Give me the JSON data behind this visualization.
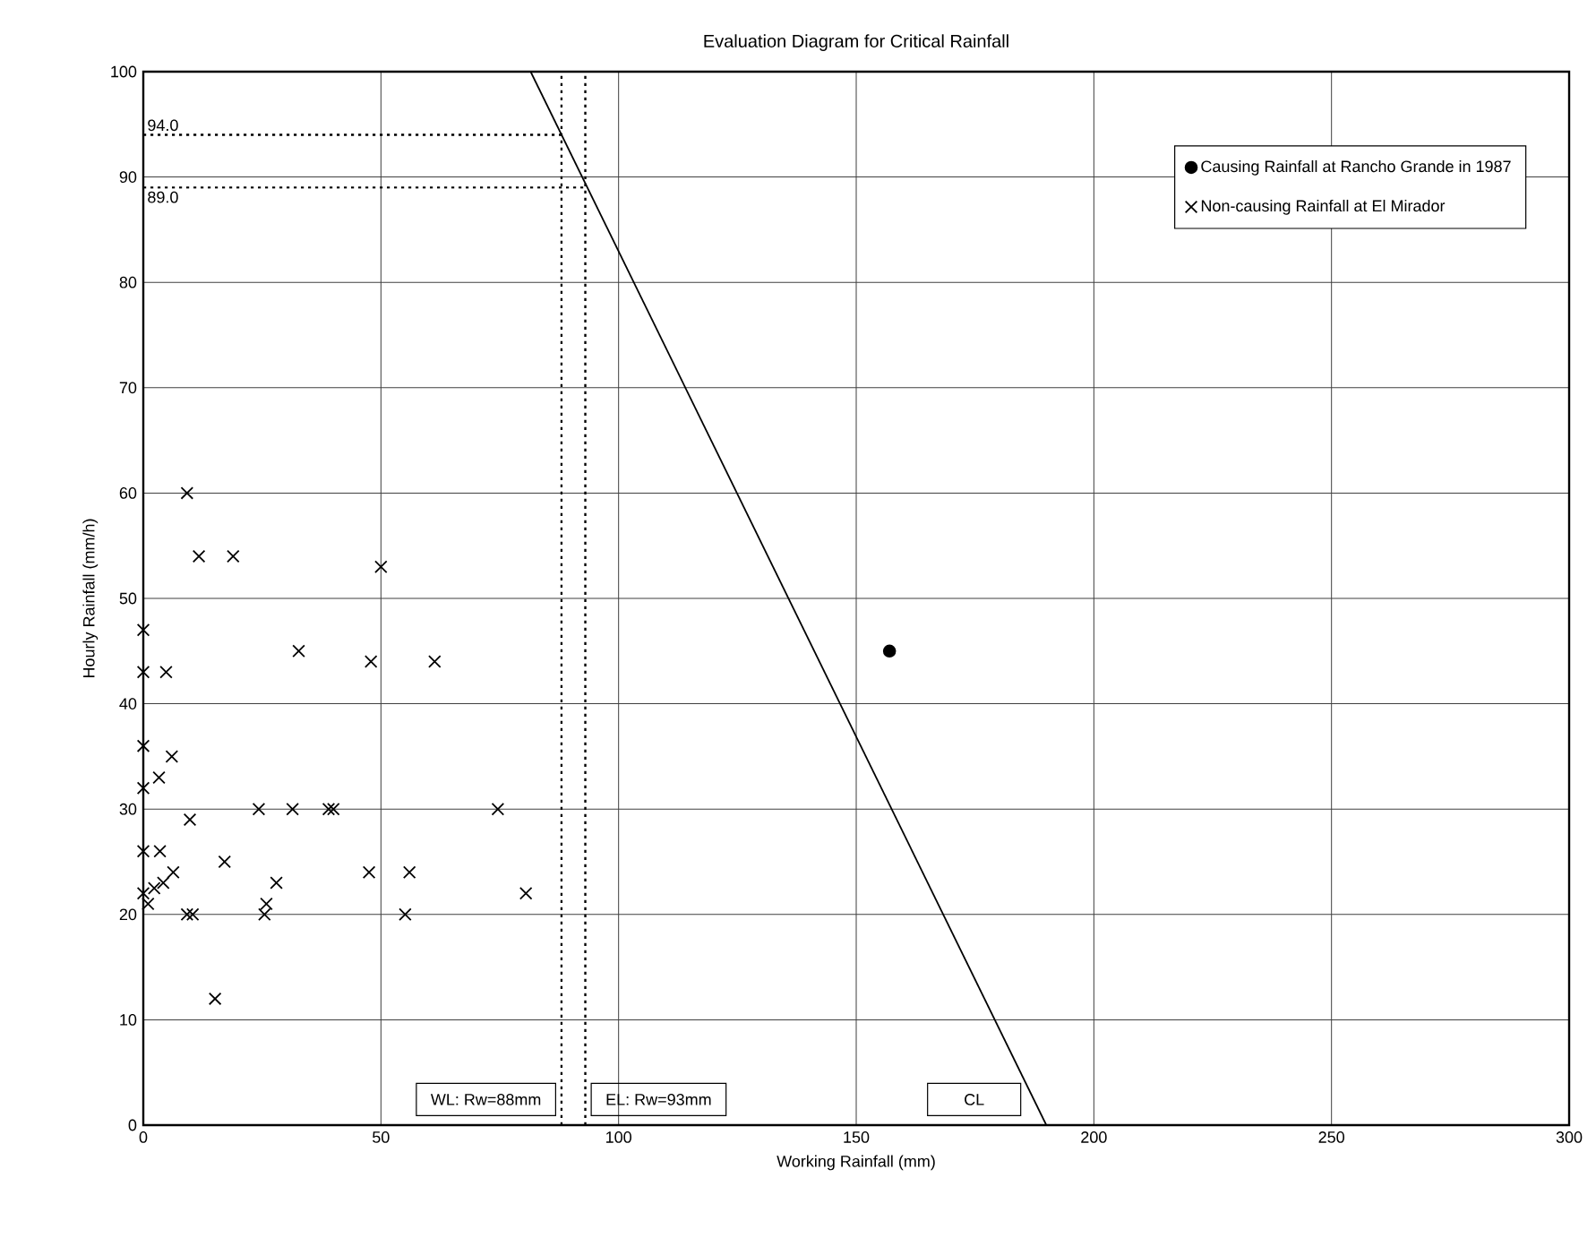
{
  "chart_data": {
    "type": "scatter",
    "title": "Evaluation Diagram for Critical Rainfall",
    "xlabel": "Working Rainfall (mm)",
    "ylabel": "Hourly Rainfall (mm/h)",
    "xlim": [
      0,
      300
    ],
    "ylim": [
      0,
      100
    ],
    "xticks": [
      0,
      50,
      100,
      150,
      200,
      250,
      300
    ],
    "yticks": [
      0,
      10,
      20,
      30,
      40,
      50,
      60,
      70,
      80,
      90,
      100
    ],
    "grid": true,
    "legend": "top right",
    "series": [
      {
        "name": "Causing Rainfall at Rancho Grande in 1987",
        "color": "#000000",
        "marker": "circle",
        "x": [
          157
        ],
        "values": [
          45
        ]
      },
      {
        "name": "Non-causing Rainfall at El Mirador",
        "color": "#000000",
        "marker": "cross",
        "x": [
          9.2,
          11.7,
          18.9,
          50,
          0,
          32.7,
          0,
          4.8,
          47.9,
          61.3,
          0,
          6,
          3.3,
          0,
          9.8,
          24.3,
          31.4,
          39,
          40,
          74.6,
          0,
          3.5,
          6.3,
          17.1,
          28,
          47.5,
          56,
          80.5,
          4.2,
          0,
          2.3,
          1,
          9.2,
          10.4,
          25.5,
          25.9,
          55.1,
          15.1
        ],
        "values": [
          60,
          54,
          54,
          53,
          47,
          45,
          43,
          43,
          44,
          44,
          36,
          35,
          33,
          32,
          29,
          30,
          30,
          30,
          30,
          30,
          26,
          26,
          24,
          25,
          23,
          24,
          24,
          22,
          23,
          22,
          22.5,
          21,
          20,
          20,
          20,
          21,
          20,
          12
        ]
      },
      {
        "name": "CL",
        "type": "line",
        "color": "#000000",
        "marker": "none",
        "x": [
          81.5,
          190
        ],
        "values": [
          100,
          0
        ]
      }
    ],
    "ref_lines": [
      {
        "axis": "x",
        "value": 88,
        "label": "WL: Rw=88mm",
        "line_style": "dotted"
      },
      {
        "axis": "x",
        "value": 93,
        "label": "EL: Rw=93mm",
        "line_style": "dotted"
      },
      {
        "axis": "y",
        "value": 94,
        "label": "94.0",
        "line_style": "dotted"
      },
      {
        "axis": "y",
        "value": 89,
        "label": "89.0",
        "line_style": "dotted"
      }
    ]
  }
}
